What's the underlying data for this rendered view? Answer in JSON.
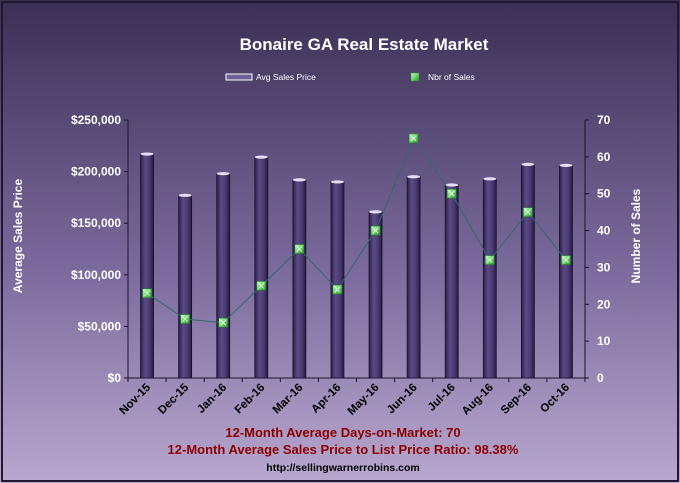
{
  "chart_data": {
    "type": "bar",
    "title": "Bonaire GA Real Estate Market",
    "categories": [
      "Nov-15",
      "Dec-15",
      "Jan-16",
      "Feb-16",
      "Mar-16",
      "Apr-16",
      "May-16",
      "Jun-16",
      "Jul-16",
      "Aug-16",
      "Sep-16",
      "Oct-16"
    ],
    "series": [
      {
        "name": "Avg Sales Price",
        "type": "bar",
        "axis": "left",
        "values": [
          217000,
          177000,
          198000,
          214000,
          192000,
          190000,
          161000,
          195000,
          187000,
          193000,
          207000,
          206000
        ]
      },
      {
        "name": "Nbr of Sales",
        "type": "line",
        "axis": "right",
        "values": [
          23,
          16,
          15,
          25,
          35,
          24,
          40,
          65,
          50,
          32,
          45,
          32
        ]
      }
    ],
    "ylabel": "Average Sales Price",
    "y2label": "Number of Sales",
    "ylim": [
      0,
      250000
    ],
    "y2lim": [
      0,
      70
    ],
    "yticks": [
      "$0",
      "$50,000",
      "$100,000",
      "$150,000",
      "$200,000",
      "$250,000"
    ],
    "y2ticks": [
      "0",
      "10",
      "20",
      "30",
      "40",
      "50",
      "60",
      "70"
    ],
    "legend_position": "top",
    "grid": false
  },
  "footer": {
    "line1": "12-Month Average Days-on-Market: 70",
    "line2": "12-Month Average Sales Price to List Price Ratio: 98.38%",
    "url": "http://sellingwarnerrobins.com"
  },
  "colors": {
    "bar": "#4a3a72",
    "marker": "#7ae07a",
    "line": "#2e6b6b",
    "footer_text": "#8b0000",
    "title_text": "#ffffff"
  }
}
